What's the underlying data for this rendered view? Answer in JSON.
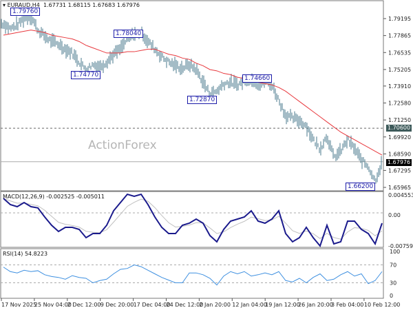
{
  "chart_data": {
    "type": "line",
    "title": "EURAUD,H4",
    "header": {
      "symbol": "EURAUD,H4",
      "open": "1.67731",
      "high": "1.68115",
      "low": "1.67683",
      "close": "1.67976"
    },
    "watermark": "ActionForex",
    "price_axis": {
      "ylim": [
        1.658,
        1.803
      ],
      "ticks": [
        "1.79195",
        "1.77865",
        "1.76535",
        "1.75205",
        "1.73910",
        "1.72580",
        "1.71250",
        "1.69920",
        "1.68590",
        "1.67295",
        "1.65965"
      ]
    },
    "x_labels": [
      "17 Nov 2025",
      "25 Nov 04:00",
      "2 Dec 12:00",
      "9 Dec 20:00",
      "17 Dec 04:00",
      "24 Dec 12:00",
      "2 Jan 20:00",
      "12 Jan 04:00",
      "19 Jan 12:00",
      "26 Jan 20:00",
      "3 Feb 04:00",
      "10 Feb 12:00"
    ],
    "close": [
      1.788,
      1.784,
      1.787,
      1.792,
      1.794,
      1.783,
      1.778,
      1.774,
      1.772,
      1.768,
      1.765,
      1.758,
      1.752,
      1.756,
      1.754,
      1.758,
      1.764,
      1.768,
      1.776,
      1.78,
      1.781,
      1.774,
      1.768,
      1.762,
      1.758,
      1.755,
      1.753,
      1.756,
      1.752,
      1.742,
      1.733,
      1.735,
      1.741,
      1.742,
      1.74,
      1.743,
      1.744,
      1.74,
      1.743,
      1.74,
      1.728,
      1.716,
      1.714,
      1.712,
      1.708,
      1.697,
      1.69,
      1.7,
      1.683,
      1.688,
      1.697,
      1.69,
      1.681,
      1.676,
      1.665,
      1.679
    ],
    "moving_average": [
      1.779,
      1.78,
      1.781,
      1.782,
      1.783,
      1.782,
      1.781,
      1.779,
      1.778,
      1.777,
      1.776,
      1.774,
      1.771,
      1.769,
      1.767,
      1.765,
      1.765,
      1.765,
      1.766,
      1.766,
      1.767,
      1.768,
      1.768,
      1.766,
      1.764,
      1.763,
      1.761,
      1.76,
      1.757,
      1.755,
      1.752,
      1.751,
      1.749,
      1.748,
      1.746,
      1.745,
      1.744,
      1.742,
      1.741,
      1.74,
      1.738,
      1.735,
      1.731,
      1.727,
      1.723,
      1.719,
      1.715,
      1.711,
      1.707,
      1.703,
      1.7,
      1.697,
      1.694,
      1.691,
      1.688,
      1.685
    ],
    "levels": {
      "resistance": "1.70600",
      "current": "1.67976"
    },
    "pivots": [
      "1.79760",
      "1.78040",
      "1.74770",
      "1.72870",
      "1.74660",
      "1.66200"
    ],
    "macd": {
      "label": "MACD(12,26,9) -0.002525 -0.005011",
      "ticks": [
        "0.004553",
        "0.00",
        "-0.007593"
      ],
      "ylim": [
        -0.0081,
        0.005
      ],
      "main": [
        3.5,
        2,
        1.5,
        2.5,
        1.5,
        1.2,
        -1,
        -3,
        -4.5,
        -3.5,
        -3.5,
        -4,
        -6,
        -5,
        -5,
        -3,
        0.5,
        2.5,
        4.5,
        4,
        4.5,
        2,
        -1,
        -3.5,
        -5,
        -5,
        -3,
        -2.5,
        -1.5,
        -2.5,
        -5.5,
        -7,
        -4,
        -2,
        -1.5,
        -1,
        0.5,
        -2,
        -2.5,
        -1.5,
        0.5,
        -5,
        -7,
        -6,
        -3.5,
        -6,
        -8,
        -3,
        -7.5,
        -7,
        -2,
        -2,
        -4,
        -5,
        -7.5,
        -2.5
      ]
    },
    "rsi": {
      "label": "RSI(14) 54.8223",
      "ticks": [
        "100",
        "70",
        "30",
        "0"
      ],
      "ylim": [
        0,
        100
      ],
      "values": [
        65,
        55,
        52,
        58,
        55,
        57,
        48,
        44,
        42,
        38,
        46,
        42,
        40,
        30,
        35,
        38,
        50,
        60,
        62,
        70,
        66,
        58,
        50,
        42,
        36,
        30,
        30,
        52,
        52,
        48,
        40,
        25,
        45,
        55,
        50,
        55,
        45,
        48,
        52,
        48,
        55,
        35,
        32,
        40,
        30,
        42,
        50,
        35,
        38,
        48,
        55,
        45,
        50,
        28,
        35,
        55
      ]
    },
    "colors": {
      "bars": "#4a7a8c",
      "ma": "#e8383d",
      "macd": "#1a1a8c",
      "signal": "#c0c0c0",
      "rsi": "#3d8fe0"
    }
  }
}
